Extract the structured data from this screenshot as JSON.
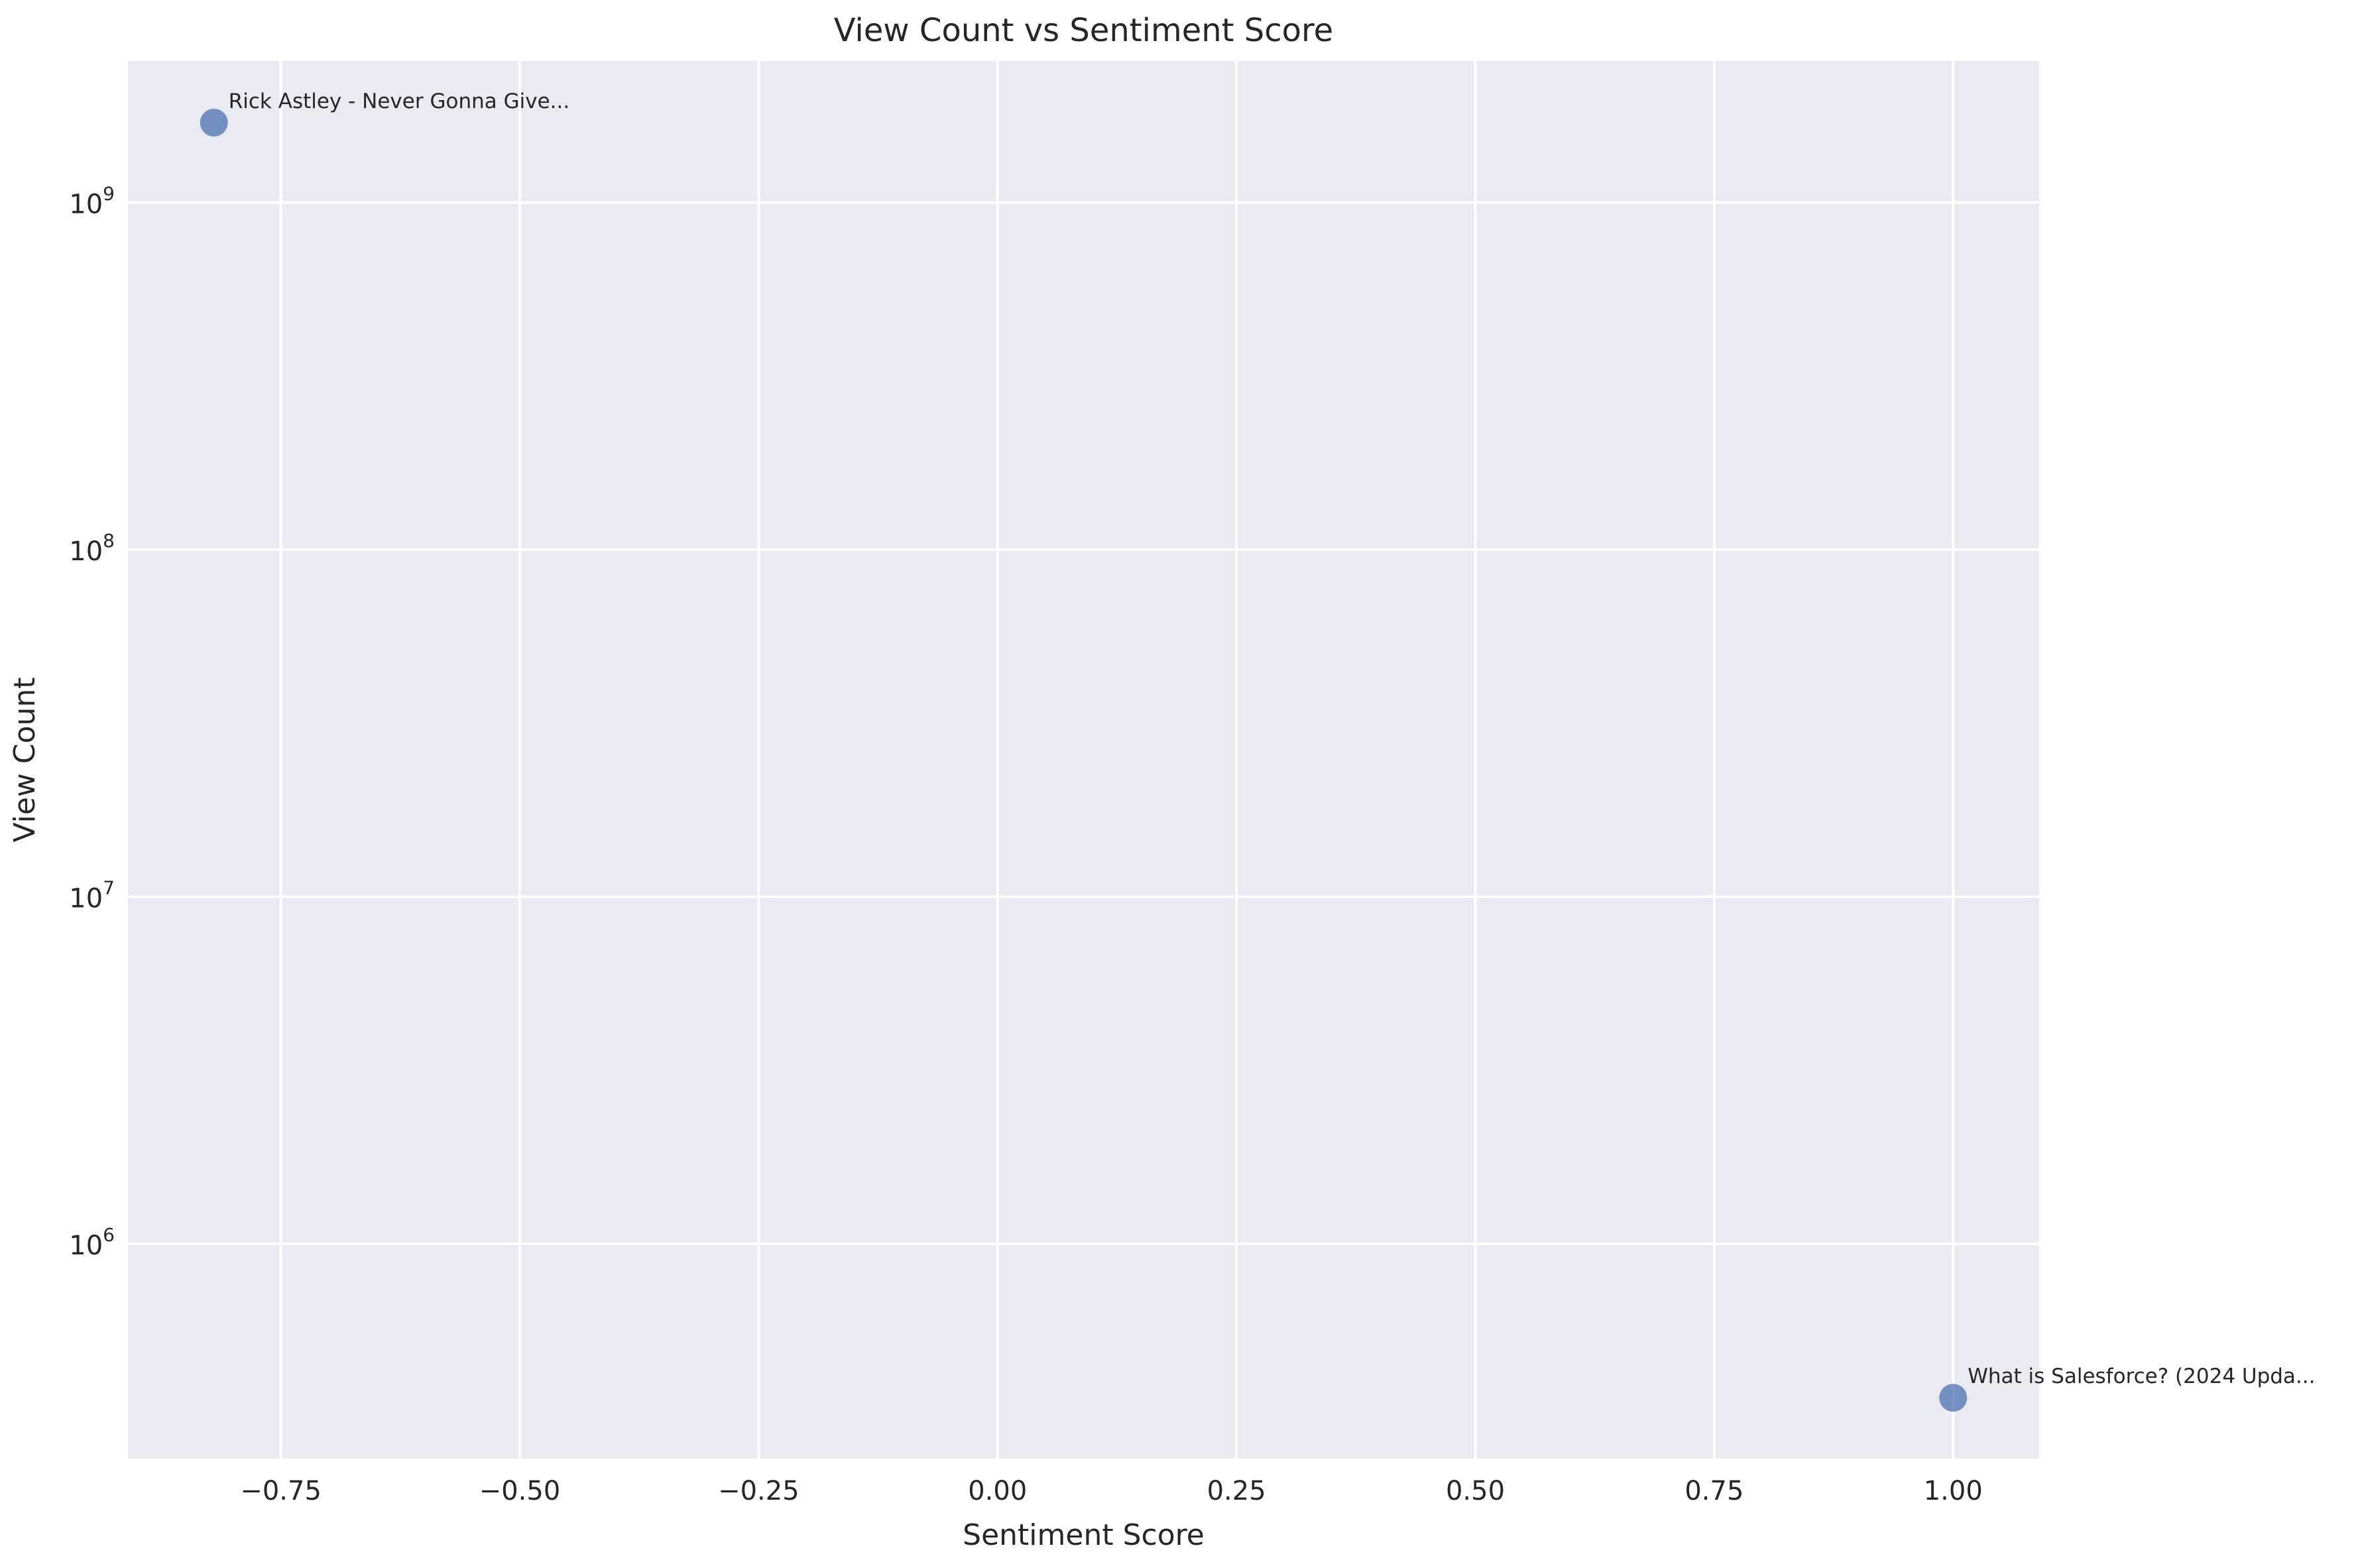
{
  "chart_data": {
    "type": "scatter",
    "title": "View Count vs Sentiment Score",
    "xlabel": "Sentiment Score",
    "ylabel": "View Count",
    "xlim": [
      -0.91,
      1.09
    ],
    "ylim_log10": [
      5.381,
      9.408
    ],
    "y_scale": "log",
    "grid": true,
    "x_ticks": [
      {
        "value": -0.75,
        "label": "−0.75"
      },
      {
        "value": -0.5,
        "label": "−0.50"
      },
      {
        "value": -0.25,
        "label": "−0.25"
      },
      {
        "value": 0.0,
        "label": "0.00"
      },
      {
        "value": 0.25,
        "label": "0.25"
      },
      {
        "value": 0.5,
        "label": "0.50"
      },
      {
        "value": 0.75,
        "label": "0.75"
      },
      {
        "value": 1.0,
        "label": "1.00"
      }
    ],
    "y_ticks": [
      {
        "exp": 6,
        "base": "10",
        "sup": "6"
      },
      {
        "exp": 7,
        "base": "10",
        "sup": "7"
      },
      {
        "exp": 8,
        "base": "10",
        "sup": "8"
      },
      {
        "exp": 9,
        "base": "10",
        "sup": "9"
      }
    ],
    "points": [
      {
        "x": -0.82,
        "y": 1700000000,
        "label": "Rick Astley - Never Gonna Give..."
      },
      {
        "x": 1.0,
        "y": 360000,
        "label": "What is Salesforce? (2024 Upda..."
      }
    ],
    "colors": {
      "background": "#eaeaf2",
      "grid": "#ffffff",
      "marker": "#4c72b0"
    }
  }
}
